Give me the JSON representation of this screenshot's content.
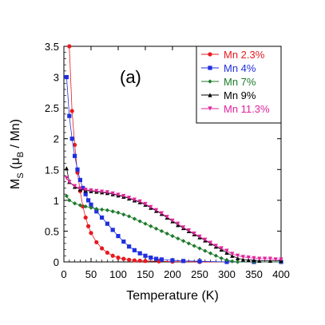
{
  "chart_data": {
    "type": "scatter",
    "panel_label": "(a)",
    "xlabel": "Temperature (K)",
    "ylabel": {
      "main": "M",
      "sub_s": "S",
      "paren_open": " (μ",
      "sub_b": "B",
      "rest": " / Mn)"
    },
    "xlim": [
      0,
      400
    ],
    "ylim": [
      0,
      3.5
    ],
    "x_ticks": [
      "0",
      "50",
      "100",
      "150",
      "200",
      "250",
      "300",
      "350",
      "400"
    ],
    "y_ticks": [
      "0",
      "0.5",
      "1",
      "1.5",
      "2",
      "2.5",
      "3",
      "3.5"
    ],
    "legend_position": "top-right",
    "series": [
      {
        "name": "Mn 2.3%",
        "color": "#e8191f",
        "marker": "circle",
        "points": [
          [
            10,
            3.5
          ],
          [
            15,
            2.45
          ],
          [
            20,
            1.9
          ],
          [
            25,
            1.45
          ],
          [
            30,
            1.15
          ],
          [
            35,
            0.9
          ],
          [
            40,
            0.72
          ],
          [
            45,
            0.58
          ],
          [
            50,
            0.47
          ],
          [
            60,
            0.32
          ],
          [
            70,
            0.22
          ],
          [
            80,
            0.15
          ],
          [
            90,
            0.1
          ],
          [
            100,
            0.07
          ],
          [
            110,
            0.05
          ],
          [
            120,
            0.035
          ],
          [
            130,
            0.025
          ],
          [
            140,
            0.02
          ],
          [
            150,
            0.015
          ],
          [
            175,
            0.01
          ],
          [
            200,
            0.005
          ],
          [
            250,
            0.0
          ],
          [
            300,
            0.0
          ],
          [
            350,
            0.0
          ],
          [
            400,
            0.0
          ]
        ]
      },
      {
        "name": "Mn 4%",
        "color": "#1f2fdf",
        "marker": "square",
        "points": [
          [
            5,
            3.0
          ],
          [
            10,
            2.37
          ],
          [
            15,
            2.0
          ],
          [
            20,
            1.72
          ],
          [
            25,
            1.5
          ],
          [
            30,
            1.33
          ],
          [
            35,
            1.2
          ],
          [
            40,
            1.1
          ],
          [
            45,
            1.0
          ],
          [
            50,
            0.93
          ],
          [
            60,
            0.82
          ],
          [
            70,
            0.72
          ],
          [
            80,
            0.62
          ],
          [
            90,
            0.52
          ],
          [
            100,
            0.42
          ],
          [
            110,
            0.33
          ],
          [
            120,
            0.25
          ],
          [
            130,
            0.19
          ],
          [
            140,
            0.14
          ],
          [
            150,
            0.1
          ],
          [
            160,
            0.07
          ],
          [
            170,
            0.05
          ],
          [
            180,
            0.04
          ],
          [
            200,
            0.025
          ],
          [
            220,
            0.015
          ],
          [
            250,
            0.01
          ],
          [
            300,
            0.0
          ],
          [
            350,
            0.0
          ],
          [
            400,
            0.0
          ]
        ]
      },
      {
        "name": "Mn 7%",
        "color": "#1d7a2b",
        "marker": "diamond",
        "points": [
          [
            5,
            1.07
          ],
          [
            10,
            1.0
          ],
          [
            20,
            0.95
          ],
          [
            30,
            0.92
          ],
          [
            40,
            0.9
          ],
          [
            50,
            0.88
          ],
          [
            60,
            0.86
          ],
          [
            70,
            0.85
          ],
          [
            80,
            0.84
          ],
          [
            90,
            0.82
          ],
          [
            100,
            0.8
          ],
          [
            110,
            0.77
          ],
          [
            120,
            0.74
          ],
          [
            130,
            0.7
          ],
          [
            140,
            0.66
          ],
          [
            150,
            0.62
          ],
          [
            160,
            0.58
          ],
          [
            170,
            0.54
          ],
          [
            180,
            0.5
          ],
          [
            190,
            0.46
          ],
          [
            200,
            0.42
          ],
          [
            210,
            0.38
          ],
          [
            220,
            0.34
          ],
          [
            230,
            0.3
          ],
          [
            240,
            0.26
          ],
          [
            250,
            0.22
          ],
          [
            260,
            0.18
          ],
          [
            270,
            0.14
          ],
          [
            280,
            0.1
          ],
          [
            290,
            0.06
          ],
          [
            300,
            0.03
          ],
          [
            310,
            0.01
          ],
          [
            320,
            0.0
          ],
          [
            350,
            0.0
          ],
          [
            400,
            0.0
          ]
        ]
      },
      {
        "name": "Mn 9%",
        "color": "#000000",
        "marker": "triangle",
        "points": [
          [
            5,
            1.52
          ],
          [
            10,
            1.3
          ],
          [
            20,
            1.22
          ],
          [
            30,
            1.18
          ],
          [
            40,
            1.16
          ],
          [
            50,
            1.15
          ],
          [
            60,
            1.14
          ],
          [
            70,
            1.13
          ],
          [
            80,
            1.12
          ],
          [
            90,
            1.1
          ],
          [
            100,
            1.08
          ],
          [
            110,
            1.06
          ],
          [
            120,
            1.03
          ],
          [
            130,
            1.0
          ],
          [
            140,
            0.97
          ],
          [
            150,
            0.93
          ],
          [
            160,
            0.88
          ],
          [
            170,
            0.83
          ],
          [
            180,
            0.78
          ],
          [
            190,
            0.72
          ],
          [
            200,
            0.66
          ],
          [
            210,
            0.6
          ],
          [
            220,
            0.55
          ],
          [
            230,
            0.5
          ],
          [
            240,
            0.45
          ],
          [
            250,
            0.4
          ],
          [
            260,
            0.35
          ],
          [
            270,
            0.3
          ],
          [
            280,
            0.25
          ],
          [
            290,
            0.2
          ],
          [
            300,
            0.15
          ],
          [
            310,
            0.1
          ],
          [
            320,
            0.06
          ],
          [
            330,
            0.04
          ],
          [
            340,
            0.03
          ],
          [
            350,
            0.03
          ],
          [
            360,
            0.02
          ],
          [
            380,
            0.02
          ],
          [
            400,
            0.02
          ]
        ]
      },
      {
        "name": "Mn 11.3%",
        "color": "#e0249b",
        "marker": "invtriangle",
        "points": [
          [
            5,
            1.36
          ],
          [
            10,
            1.3
          ],
          [
            20,
            1.23
          ],
          [
            30,
            1.19
          ],
          [
            40,
            1.17
          ],
          [
            50,
            1.16
          ],
          [
            60,
            1.15
          ],
          [
            70,
            1.14
          ],
          [
            80,
            1.13
          ],
          [
            90,
            1.11
          ],
          [
            100,
            1.09
          ],
          [
            110,
            1.07
          ],
          [
            120,
            1.04
          ],
          [
            130,
            1.01
          ],
          [
            140,
            0.98
          ],
          [
            150,
            0.94
          ],
          [
            160,
            0.89
          ],
          [
            170,
            0.84
          ],
          [
            180,
            0.79
          ],
          [
            190,
            0.73
          ],
          [
            200,
            0.67
          ],
          [
            210,
            0.62
          ],
          [
            220,
            0.56
          ],
          [
            230,
            0.51
          ],
          [
            240,
            0.46
          ],
          [
            250,
            0.41
          ],
          [
            260,
            0.36
          ],
          [
            270,
            0.31
          ],
          [
            280,
            0.26
          ],
          [
            290,
            0.22
          ],
          [
            300,
            0.18
          ],
          [
            310,
            0.13
          ],
          [
            320,
            0.1
          ],
          [
            330,
            0.08
          ],
          [
            340,
            0.07
          ],
          [
            350,
            0.06
          ],
          [
            360,
            0.05
          ],
          [
            370,
            0.05
          ],
          [
            380,
            0.05
          ],
          [
            390,
            0.04
          ],
          [
            400,
            0.04
          ]
        ]
      }
    ]
  }
}
